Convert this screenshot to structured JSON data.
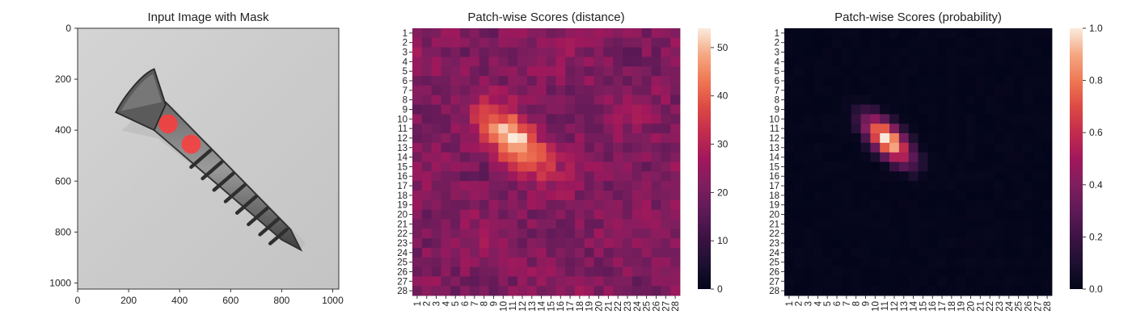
{
  "chart_data": [
    {
      "type": "image",
      "title": "Input Image with Mask",
      "xlim": [
        0,
        1024
      ],
      "ylim": [
        1024,
        0
      ],
      "xticks": [
        0,
        200,
        400,
        600,
        800,
        1000
      ],
      "yticks": [
        0,
        200,
        400,
        600,
        800,
        1000
      ],
      "image_description": "grayscale photo of a metal countersunk screw on light gray background, lying diagonally",
      "mask_regions": [
        {
          "x": 355,
          "y": 375,
          "r": 30
        },
        {
          "x": 445,
          "y": 455,
          "r": 30
        }
      ],
      "mask_color": "#ff3b3b"
    },
    {
      "type": "heatmap",
      "title": "Patch-wise Scores (distance)",
      "grid_size": 28,
      "tick_labels": [
        "1",
        "2",
        "3",
        "4",
        "5",
        "6",
        "7",
        "8",
        "9",
        "10",
        "11",
        "12",
        "13",
        "14",
        "15",
        "16",
        "17",
        "18",
        "19",
        "20",
        "21",
        "22",
        "23",
        "24",
        "25",
        "26",
        "27",
        "28"
      ],
      "colorbar": {
        "min": 0,
        "max": 54,
        "ticks": [
          0,
          10,
          20,
          30,
          40,
          50
        ]
      },
      "peak": {
        "row": 12,
        "col": 11,
        "value": 54
      },
      "background_range": [
        18,
        30
      ],
      "colormap": "rocket"
    },
    {
      "type": "heatmap",
      "title": "Patch-wise Scores (probability)",
      "grid_size": 28,
      "tick_labels": [
        "1",
        "2",
        "3",
        "4",
        "5",
        "6",
        "7",
        "8",
        "9",
        "10",
        "11",
        "12",
        "13",
        "14",
        "15",
        "16",
        "17",
        "18",
        "19",
        "20",
        "21",
        "22",
        "23",
        "24",
        "25",
        "26",
        "27",
        "28"
      ],
      "colorbar": {
        "min": 0.0,
        "max": 1.0,
        "ticks": [
          "0.0",
          "0.2",
          "0.4",
          "0.6",
          "0.8",
          "1.0"
        ]
      },
      "peak": {
        "row": 12,
        "col": 11,
        "value": 1.0
      },
      "colormap": "rocket"
    }
  ]
}
